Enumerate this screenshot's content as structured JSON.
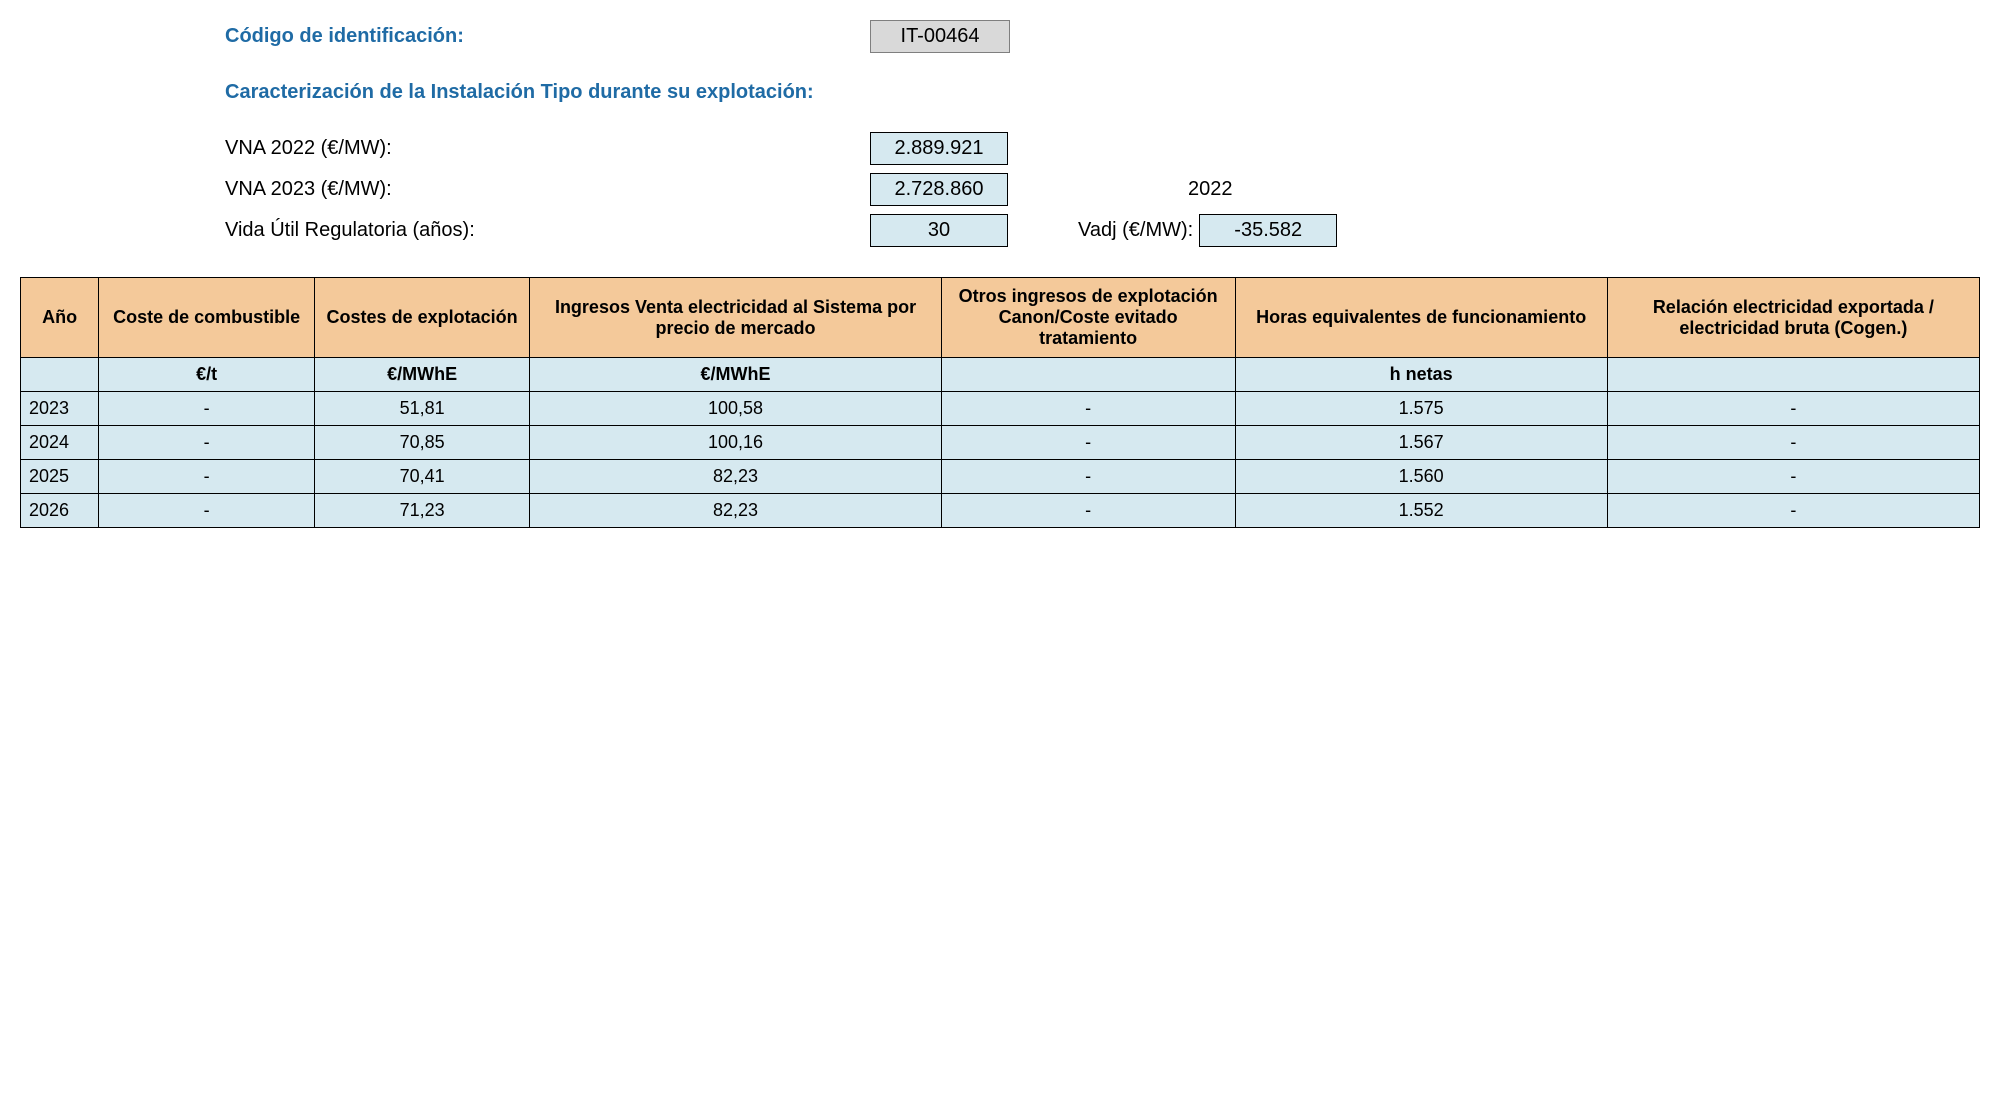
{
  "header": {
    "id_label": "Código de identificación:",
    "id_value": "IT-00464",
    "section_title": "Caracterización de la Instalación Tipo durante su explotación:",
    "vna2022_label": "VNA 2022 (€/MW):",
    "vna2022_value": "2.889.921",
    "vna2023_label": "VNA 2023 (€/MW):",
    "vna2023_value": "2.728.860",
    "ref_year": "2022",
    "life_label": "Vida Útil Regulatoria (años):",
    "life_value": "30",
    "vadj_label": "Vadj (€/MW):",
    "vadj_value": "-35.582"
  },
  "table": {
    "headers": {
      "year": "Año",
      "fuel": "Coste de combustible",
      "opex": "Costes de explotación",
      "income": "Ingresos Venta electricidad al Sistema por precio de mercado",
      "other": "Otros ingresos de explotación Canon/Coste evitado tratamiento",
      "hours": "Horas equivalentes de funcionamiento",
      "ratio": "Relación electricidad exportada / electricidad bruta (Cogen.)"
    },
    "units": {
      "year": "",
      "fuel": "€/t",
      "opex": "€/MWhE",
      "income": "€/MWhE",
      "other": "",
      "hours": "h netas",
      "ratio": ""
    },
    "rows": [
      {
        "year": "2023",
        "fuel": "-",
        "opex": "51,81",
        "income": "100,58",
        "other": "-",
        "hours": "1.575",
        "ratio": "-"
      },
      {
        "year": "2024",
        "fuel": "-",
        "opex": "70,85",
        "income": "100,16",
        "other": "-",
        "hours": "1.567",
        "ratio": "-"
      },
      {
        "year": "2025",
        "fuel": "-",
        "opex": "70,41",
        "income": "82,23",
        "other": "-",
        "hours": "1.560",
        "ratio": "-"
      },
      {
        "year": "2026",
        "fuel": "-",
        "opex": "71,23",
        "income": "82,23",
        "other": "-",
        "hours": "1.552",
        "ratio": "-"
      }
    ],
    "header_bg": "#f4c99a",
    "cell_bg": "#d6e9f0",
    "border_color": "#000000"
  }
}
